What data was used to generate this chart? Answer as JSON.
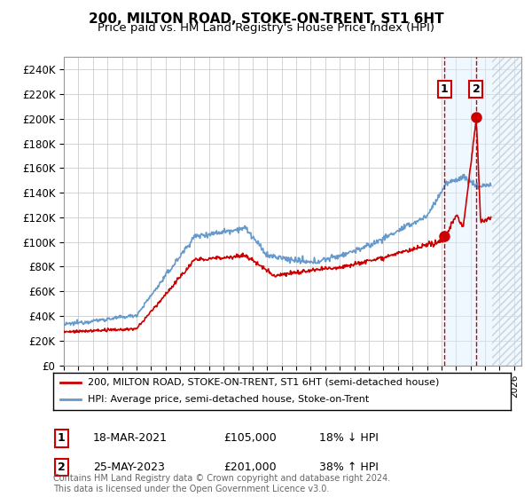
{
  "title": "200, MILTON ROAD, STOKE-ON-TRENT, ST1 6HT",
  "subtitle": "Price paid vs. HM Land Registry's House Price Index (HPI)",
  "ylabel_ticks": [
    "£0",
    "£20K",
    "£40K",
    "£60K",
    "£80K",
    "£100K",
    "£120K",
    "£140K",
    "£160K",
    "£180K",
    "£200K",
    "£220K",
    "£240K"
  ],
  "ytick_values": [
    0,
    20000,
    40000,
    60000,
    80000,
    100000,
    120000,
    140000,
    160000,
    180000,
    200000,
    220000,
    240000
  ],
  "ylim": [
    0,
    250000
  ],
  "xlim_start": 1995.0,
  "xlim_end": 2026.5,
  "transaction1": {
    "date_num": 2021.21,
    "price": 105000,
    "label": "1",
    "date_str": "18-MAR-2021",
    "hpi_pct": "18% ↓ HPI"
  },
  "transaction2": {
    "date_num": 2023.38,
    "price": 201000,
    "label": "2",
    "date_str": "25-MAY-2023",
    "hpi_pct": "38% ↑ HPI"
  },
  "hpi_color": "#6699cc",
  "property_color": "#cc0000",
  "vline_color": "#cc0000",
  "background_shade_color": "#ddeeff",
  "legend_label_property": "200, MILTON ROAD, STOKE-ON-TRENT, ST1 6HT (semi-detached house)",
  "legend_label_hpi": "HPI: Average price, semi-detached house, Stoke-on-Trent",
  "footnote": "Contains HM Land Registry data © Crown copyright and database right 2024.\nThis data is licensed under the Open Government Licence v3.0.",
  "xtick_years": [
    1995,
    1996,
    1997,
    1998,
    1999,
    2000,
    2001,
    2002,
    2003,
    2004,
    2005,
    2006,
    2007,
    2008,
    2009,
    2010,
    2011,
    2012,
    2013,
    2014,
    2015,
    2016,
    2017,
    2018,
    2019,
    2020,
    2021,
    2022,
    2023,
    2024,
    2025,
    2026
  ],
  "future_start": 2024.5,
  "fig_width": 6.0,
  "fig_height": 5.6
}
